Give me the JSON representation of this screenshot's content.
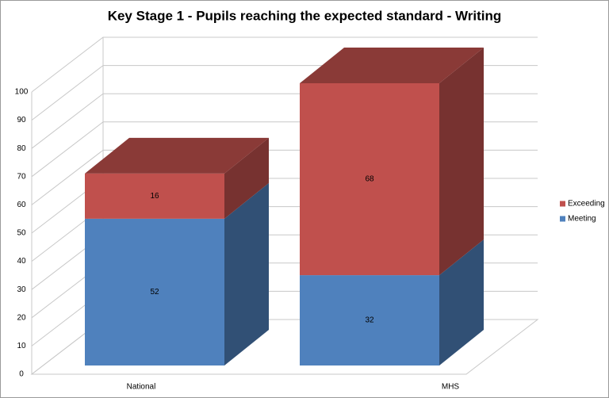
{
  "chart_data": {
    "type": "bar3d_stacked",
    "title": "Key Stage 1 - Pupils reaching the expected standard - Writing",
    "categories": [
      "National",
      "MHS"
    ],
    "series": [
      {
        "name": "Meeting",
        "color": "#4f81bd",
        "values": [
          52,
          32
        ]
      },
      {
        "name": "Exceeding",
        "color": "#c0504d",
        "values": [
          16,
          68
        ]
      }
    ],
    "ylim": [
      0,
      100
    ],
    "yticks": [
      0,
      10,
      20,
      30,
      40,
      50,
      60,
      70,
      80,
      90,
      100
    ],
    "grid": true,
    "legend": "right"
  }
}
